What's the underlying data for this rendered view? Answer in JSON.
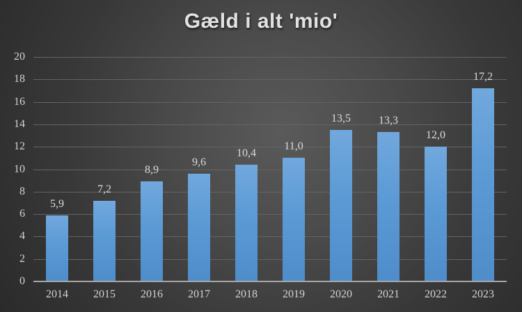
{
  "chart_data": {
    "type": "bar",
    "title": "Gæld i alt 'mio'",
    "categories": [
      "2014",
      "2015",
      "2016",
      "2017",
      "2018",
      "2019",
      "2020",
      "2021",
      "2022",
      "2023"
    ],
    "values": [
      5.9,
      7.2,
      8.9,
      9.6,
      10.4,
      11.0,
      13.5,
      13.3,
      12.0,
      17.2
    ],
    "value_labels": [
      "5,9",
      "7,2",
      "8,9",
      "9,6",
      "10,4",
      "11,0",
      "13,5",
      "13,3",
      "12,0",
      "17,2"
    ],
    "xlabel": "",
    "ylabel": "",
    "ylim": [
      0,
      20
    ],
    "ytick_interval": 2,
    "yticks": [
      0,
      2,
      4,
      6,
      8,
      10,
      12,
      14,
      16,
      18,
      20
    ],
    "grid": true,
    "legend_position": "none",
    "colors": {
      "bar_gradient_top": "#71a8dd",
      "bar_gradient_mid": "#5b9ad5",
      "bar_gradient_bottom": "#4e8dca",
      "gridline": "#646464",
      "axis_line": "#a8a8a8",
      "tick_text": "#d4d4d4",
      "value_text": "#dcdcdc",
      "title_text": "#e2e2e2",
      "background_center": "#5a5a5a",
      "background_edge": "#262626"
    }
  }
}
